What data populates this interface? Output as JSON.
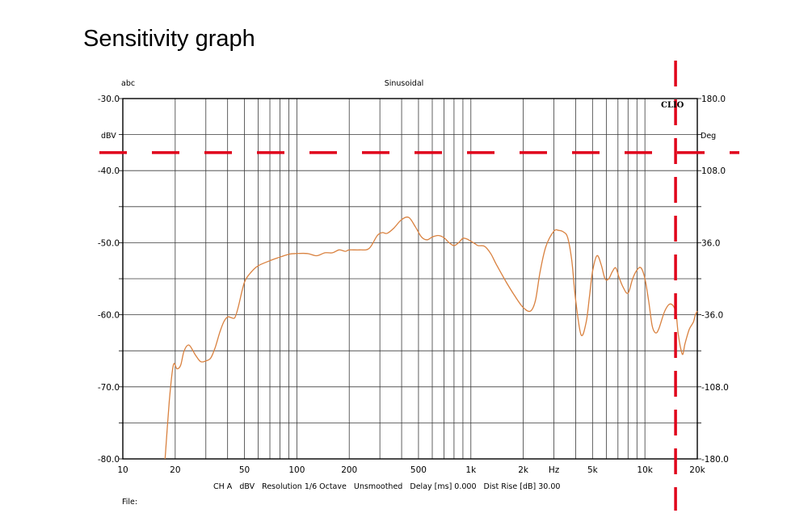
{
  "title": "Sensitivity graph",
  "chart_data": {
    "type": "line",
    "title": "Sinusoidal",
    "left_unit_label": "abc",
    "left_axis_label": "dBV",
    "right_axis_label": "Deg",
    "brand": "CLIO",
    "x_scale": "log",
    "xlim": [
      10,
      20000
    ],
    "ylim": [
      -80,
      -30
    ],
    "right_ylim": [
      -180,
      180
    ],
    "grid": true,
    "x_tick_labels": [
      "10",
      "20",
      "50",
      "100",
      "200",
      "500",
      "1k",
      "2k",
      "Hz",
      "5k",
      "10k",
      "20k"
    ],
    "x_tick_values": [
      10,
      20,
      50,
      100,
      200,
      500,
      1000,
      2000,
      3000,
      5000,
      10000,
      20000
    ],
    "y_tick_labels": [
      "-30.0",
      "-40.0",
      "-50.0",
      "-60.0",
      "-70.0",
      "-80.0"
    ],
    "y_tick_values": [
      -30,
      -40,
      -50,
      -60,
      -70,
      -80
    ],
    "right_tick_labels": [
      "180.0",
      "108.0",
      "36.0",
      "-36.0",
      "-108.0",
      "-180.0"
    ],
    "right_tick_values": [
      180,
      108,
      36,
      -36,
      -108,
      -180
    ],
    "footer": "CH A   dBV   Resolution 1/6 Octave   Unsmoothed   Delay [ms] 0.000   Dist Rise [dB] 30.00",
    "file_label": "File:",
    "series": [
      {
        "color": "#d9813f",
        "x": [
          17.5,
          18.5,
          19.5,
          20.5,
          21.5,
          22.5,
          24,
          26,
          28,
          30,
          32,
          34,
          36,
          38,
          40,
          42,
          44,
          46,
          50,
          55,
          60,
          70,
          80,
          90,
          100,
          115,
          130,
          145,
          160,
          175,
          190,
          200,
          230,
          260,
          290,
          310,
          330,
          360,
          400,
          440,
          480,
          520,
          560,
          600,
          650,
          700,
          750,
          800,
          850,
          900,
          950,
          1000,
          1050,
          1100,
          1200,
          1300,
          1400,
          1600,
          1800,
          2000,
          2200,
          2350,
          2500,
          2700,
          3000,
          3200,
          3400,
          3600,
          3800,
          4000,
          4300,
          4600,
          4800,
          5000,
          5300,
          5600,
          5900,
          6200,
          6500,
          6800,
          7100,
          7500,
          8000,
          8500,
          9000,
          9500,
          10000,
          10500,
          11000,
          11500,
          12000,
          13000,
          14000,
          15000,
          15500,
          16000,
          16500,
          17000,
          18000,
          19000,
          19500,
          20000
        ],
        "y": [
          -80.0,
          -72.0,
          -67.0,
          -67.5,
          -67.0,
          -65.0,
          -64.2,
          -65.5,
          -66.5,
          -66.4,
          -66.0,
          -64.5,
          -62.5,
          -61.0,
          -60.3,
          -60.4,
          -60.4,
          -59.0,
          -55.5,
          -54.0,
          -53.2,
          -52.5,
          -52.0,
          -51.6,
          -51.5,
          -51.5,
          -51.8,
          -51.4,
          -51.4,
          -51.0,
          -51.2,
          -51.0,
          -51.0,
          -50.8,
          -49.0,
          -48.6,
          -48.7,
          -48.0,
          -46.8,
          -46.5,
          -47.8,
          -49.2,
          -49.6,
          -49.2,
          -49.0,
          -49.3,
          -50.0,
          -50.4,
          -50.0,
          -49.4,
          -49.5,
          -49.8,
          -50.1,
          -50.4,
          -50.5,
          -51.5,
          -53.0,
          -55.5,
          -57.5,
          -59.0,
          -59.5,
          -58.0,
          -54.0,
          -50.5,
          -48.4,
          -48.3,
          -48.5,
          -49.3,
          -52.5,
          -58.0,
          -62.8,
          -61.0,
          -57.5,
          -54.0,
          -51.8,
          -53.0,
          -55.0,
          -55.0,
          -54.0,
          -53.5,
          -54.8,
          -56.2,
          -57.0,
          -55.0,
          -53.8,
          -53.5,
          -55.0,
          -58.0,
          -61.5,
          -62.5,
          -62.0,
          -59.5,
          -58.5,
          -59.5,
          -62.5,
          -64.5,
          -65.5,
          -64.0,
          -62.0,
          -61.0,
          -60.0,
          -59.5
        ]
      }
    ]
  },
  "overlays": {
    "color": "#e0001a",
    "threshold_dbv": -37.5,
    "marker_freq_hz": 15000
  }
}
